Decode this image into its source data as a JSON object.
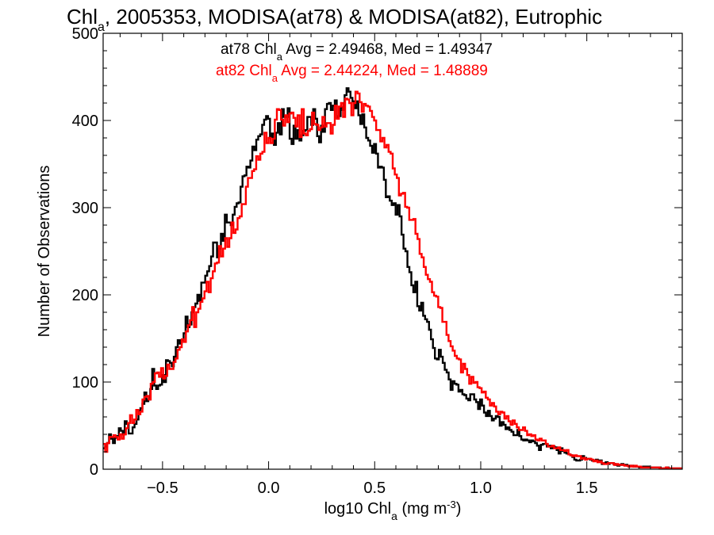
{
  "chart_data": {
    "type": "histogram",
    "title": {
      "pre": "Chl",
      "sub": "a",
      "post": ", 2005353, MODISA(at78) & MODISA(at82), Eutrophic"
    },
    "xlabel": {
      "pre": "log10 Chl",
      "sub": "a",
      "mid": " (mg m",
      "sup": "-3",
      "post": ")"
    },
    "ylabel": "Number of Observations",
    "xlim": [
      -0.78,
      1.95
    ],
    "ylim": [
      0,
      500
    ],
    "x_ticks": [
      -0.5,
      0.0,
      0.5,
      1.0,
      1.5
    ],
    "x_tick_labels": [
      "−0.5",
      "0.0",
      "0.5",
      "1.0",
      "1.5"
    ],
    "y_ticks": [
      0,
      100,
      200,
      300,
      400,
      500
    ],
    "y_tick_labels": [
      "0",
      "100",
      "200",
      "300",
      "400",
      "500"
    ],
    "bin_width": 0.01,
    "annotations": [
      {
        "pre": "at78 Chl",
        "sub": "a",
        "post": " Avg = 2.49468, Med = 1.49347",
        "color": "#000000"
      },
      {
        "pre": "at82 Chl",
        "sub": "a",
        "post": " Avg = 2.44224, Med = 1.48889",
        "color": "#ff0000"
      }
    ],
    "series": [
      {
        "name": "at78",
        "color": "#000000",
        "x_start": -0.78,
        "x_end": 1.95,
        "values": [
          24,
          26,
          30,
          40,
          35,
          30,
          36,
          38,
          47,
          44,
          40,
          55,
          52,
          41,
          41,
          48,
          52,
          57,
          67,
          70,
          75,
          88,
          78,
          80,
          92,
          115,
          96,
          92,
          96,
          97,
          108,
          100,
          125,
          124,
          122,
          118,
          129,
          140,
          148,
          144,
          148,
          156,
          175,
          163,
          166,
          180,
          186,
          190,
          200,
          193,
          214,
          214,
          222,
          227,
          233,
          244,
          260,
          260,
          243,
          253,
          270,
          262,
          292,
          283,
          283,
          280,
          292,
          301,
          305,
          306,
          324,
          336,
          337,
          347,
          346,
          354,
          370,
          366,
          378,
          382,
          384,
          395,
          401,
          405,
          402,
          381,
          385,
          372,
          386,
          397,
          384,
          413,
          404,
          404,
          414,
          379,
          373,
          394,
          379,
          389,
          377,
          383,
          388,
          389,
          404,
          404,
          395,
          413,
          402,
          382,
          375,
          394,
          387,
          413,
          419,
          420,
          412,
          417,
          423,
          403,
          405,
          415,
          412,
          429,
          437,
          433,
          426,
          422,
          414,
          422,
          406,
          396,
          407,
          392,
          380,
          377,
          371,
          363,
          373,
          362,
          346,
          347,
          346,
          332,
          312,
          313,
          308,
          303,
          305,
          292,
          303,
          290,
          269,
          253,
          250,
          232,
          226,
          211,
          203,
          215,
          187,
          182,
          191,
          176,
          172,
          169,
          160,
          149,
          139,
          127,
          126,
          137,
          129,
          122,
          114,
          111,
          103,
          91,
          101,
          98,
          97,
          89,
          91,
          86,
          85,
          81,
          79,
          86,
          86,
          80,
          77,
          69,
          80,
          73,
          65,
          61,
          67,
          61,
          56,
          58,
          61,
          60,
          50,
          54,
          51,
          46,
          48,
          45,
          43,
          39,
          39,
          45,
          38,
          34,
          33,
          34,
          33,
          31,
          33,
          32,
          30,
          27,
          22,
          28,
          29,
          29,
          26,
          27,
          24,
          26,
          25,
          22,
          18,
          24,
          21,
          19,
          18,
          17,
          16,
          14,
          11,
          10,
          10,
          11,
          15,
          13,
          12,
          12,
          11,
          10,
          10,
          11,
          9,
          10,
          6,
          7,
          8,
          6,
          7,
          7,
          6,
          5,
          4,
          5,
          6,
          5,
          5,
          4,
          4,
          4,
          3,
          3,
          3,
          2,
          2,
          3,
          3,
          3,
          2,
          2,
          2,
          2,
          2,
          2,
          1,
          1,
          1,
          2,
          1,
          1,
          1,
          1,
          1,
          1,
          1
        ]
      },
      {
        "name": "at82",
        "color": "#ff0000",
        "x_start": -0.78,
        "x_end": 1.95,
        "values": [
          29,
          20,
          30,
          37,
          37,
          39,
          37,
          34,
          40,
          35,
          40,
          47,
          53,
          62,
          53,
          57,
          68,
          63,
          66,
          80,
          83,
          84,
          80,
          98,
          100,
          110,
          111,
          106,
          116,
          104,
          107,
          120,
          115,
          115,
          123,
          127,
          137,
          140,
          149,
          146,
          158,
          165,
          171,
          186,
          163,
          180,
          184,
          192,
          196,
          204,
          215,
          203,
          219,
          227,
          236,
          237,
          256,
          244,
          253,
          265,
          255,
          265,
          283,
          271,
          275,
          288,
          290,
          304,
          304,
          324,
          334,
          334,
          342,
          344,
          359,
          355,
          362,
          364,
          386,
          374,
          380,
          374,
          379,
          401,
          413,
          412,
          401,
          394,
          406,
          398,
          408,
          409,
          403,
          393,
          406,
          381,
          413,
          385,
          383,
          388,
          390,
          409,
          396,
          395,
          389,
          392,
          404,
          393,
          397,
          397,
          385,
          395,
          417,
          402,
          416,
          420,
          404,
          425,
          424,
          420,
          406,
          420,
          433,
          431,
          421,
          410,
          419,
          417,
          416,
          411,
          404,
          400,
          389,
          389,
          376,
          380,
          369,
          372,
          364,
          362,
          345,
          338,
          334,
          314,
          316,
          317,
          301,
          300,
          286,
          286,
          287,
          270,
          264,
          247,
          243,
          232,
          223,
          218,
          215,
          203,
          199,
          198,
          186,
          185,
          169,
          169,
          154,
          147,
          141,
          136,
          130,
          127,
          126,
          111,
          121,
          115,
          108,
          98,
          106,
          99,
          100,
          94,
          93,
          88,
          89,
          82,
          80,
          73,
          76,
          72,
          66,
          63,
          66,
          65,
          58,
          61,
          55,
          51,
          56,
          52,
          48,
          45,
          45,
          48,
          44,
          39,
          40,
          38,
          39,
          34,
          33,
          35,
          33,
          33,
          29,
          26,
          26,
          27,
          24,
          24,
          25,
          22,
          22,
          21,
          22,
          17,
          16,
          15,
          16,
          15,
          15,
          12,
          13,
          11,
          12,
          12,
          11,
          9,
          10,
          8,
          9,
          7,
          6,
          6,
          7,
          7,
          7,
          5,
          6,
          5,
          5,
          5,
          4,
          4,
          3,
          4,
          3,
          4,
          3,
          3,
          2,
          2,
          2,
          2,
          2,
          2,
          2,
          2,
          2,
          1,
          1,
          1,
          2,
          1,
          1,
          1,
          1,
          1,
          1,
          1
        ]
      }
    ]
  }
}
